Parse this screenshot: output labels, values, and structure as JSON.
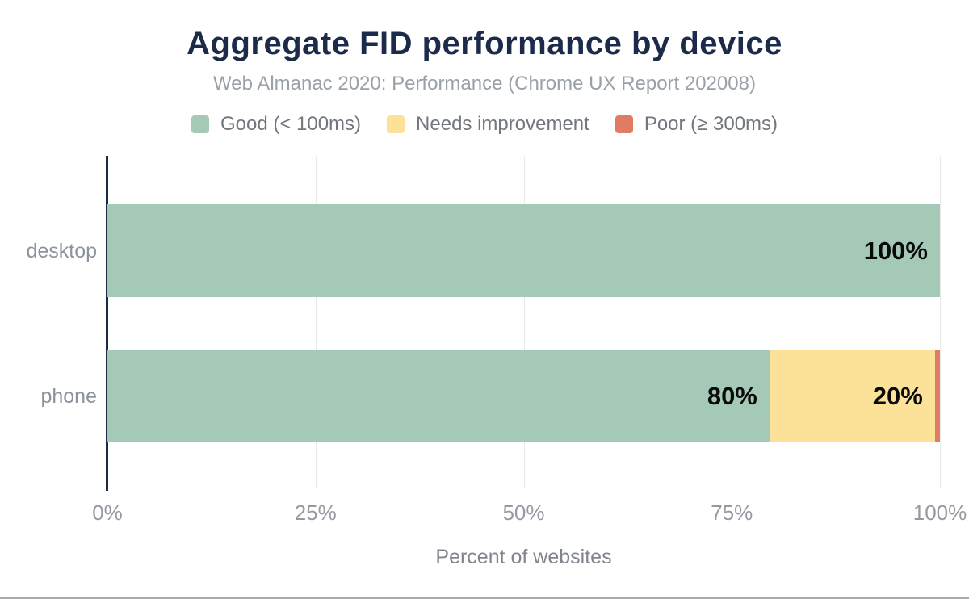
{
  "chart_data": {
    "type": "bar",
    "orientation": "horizontal",
    "stacked": true,
    "title": "Aggregate FID performance by device",
    "subtitle": "Web Almanac 2020: Performance (Chrome UX Report 202008)",
    "xlabel": "Percent of websites",
    "categories": [
      "desktop",
      "phone"
    ],
    "series": [
      {
        "name": "Good (< 100ms)",
        "color": "#a4c9b6",
        "values": [
          100,
          80
        ]
      },
      {
        "name": "Needs improvement",
        "color": "#fce199",
        "values": [
          0,
          20
        ]
      },
      {
        "name": "Poor (≥ 300ms)",
        "color": "#e07c63",
        "values": [
          0,
          0.6
        ]
      }
    ],
    "bar_labels": [
      [
        "100%",
        "",
        ""
      ],
      [
        "80%",
        "20%",
        ""
      ]
    ],
    "x_ticks": [
      "0%",
      "25%",
      "50%",
      "75%",
      "100%"
    ],
    "xlim": [
      0,
      100
    ],
    "legend_position": "top",
    "grid": "vertical"
  },
  "colors": {
    "title_text": "#1b2b49",
    "subtitle_text": "#9aa0a8",
    "legend_text": "#72767e",
    "axis_line": "#1c2b42",
    "gridline": "#e9e9e9",
    "axis_tick_text": "#959aa2",
    "category_text": "#8d939c",
    "bar_label_text": "#0a0a0a"
  }
}
